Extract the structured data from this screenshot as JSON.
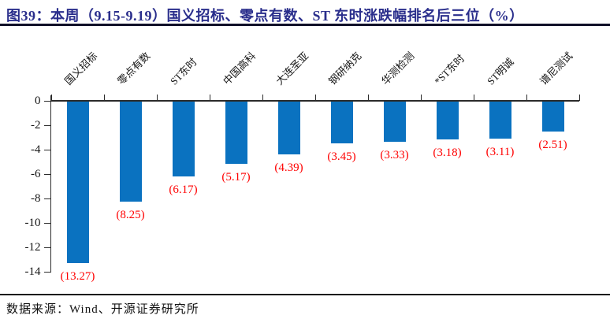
{
  "title": "图39：本周（9.15-9.19）国义招标、零点有数、ST 东时涨跌幅排名后三位（%）",
  "source": "数据来源：Wind、开源证券研究所",
  "chart_data": {
    "type": "bar",
    "title": "本周（9.15-9.19）国义招标、零点有数、ST东时涨跌幅排名后三位（%）",
    "categories": [
      "国义招标",
      "零点有数",
      "ST东时",
      "中国高科",
      "大连圣亚",
      "钢研纳克",
      "华测检测",
      "*ST东时",
      "ST明诚",
      "谱尼测试"
    ],
    "values": [
      -13.27,
      -8.25,
      -6.17,
      -5.17,
      -4.39,
      -3.45,
      -3.33,
      -3.18,
      -3.11,
      -2.51
    ],
    "data_labels": [
      "(13.27)",
      "(8.25)",
      "(6.17)",
      "(5.17)",
      "(4.39)",
      "(3.45)",
      "(3.33)",
      "(3.18)",
      "(3.11)",
      "(2.51)"
    ],
    "y_ticks": [
      0,
      -2,
      -4,
      -6,
      -8,
      -10,
      -12,
      -14
    ],
    "ylim": [
      -14,
      0
    ],
    "xlabel": "",
    "ylabel": "",
    "grid": false,
    "legend_position": "none",
    "bar_color": "#0A72C0",
    "data_label_color": "#FF0000",
    "category_label_rotation_deg": 45
  },
  "colors": {
    "title": "#2A2E8C",
    "title_rule": "#101028",
    "axis": "#2b2b2b",
    "background": "#ffffff"
  }
}
